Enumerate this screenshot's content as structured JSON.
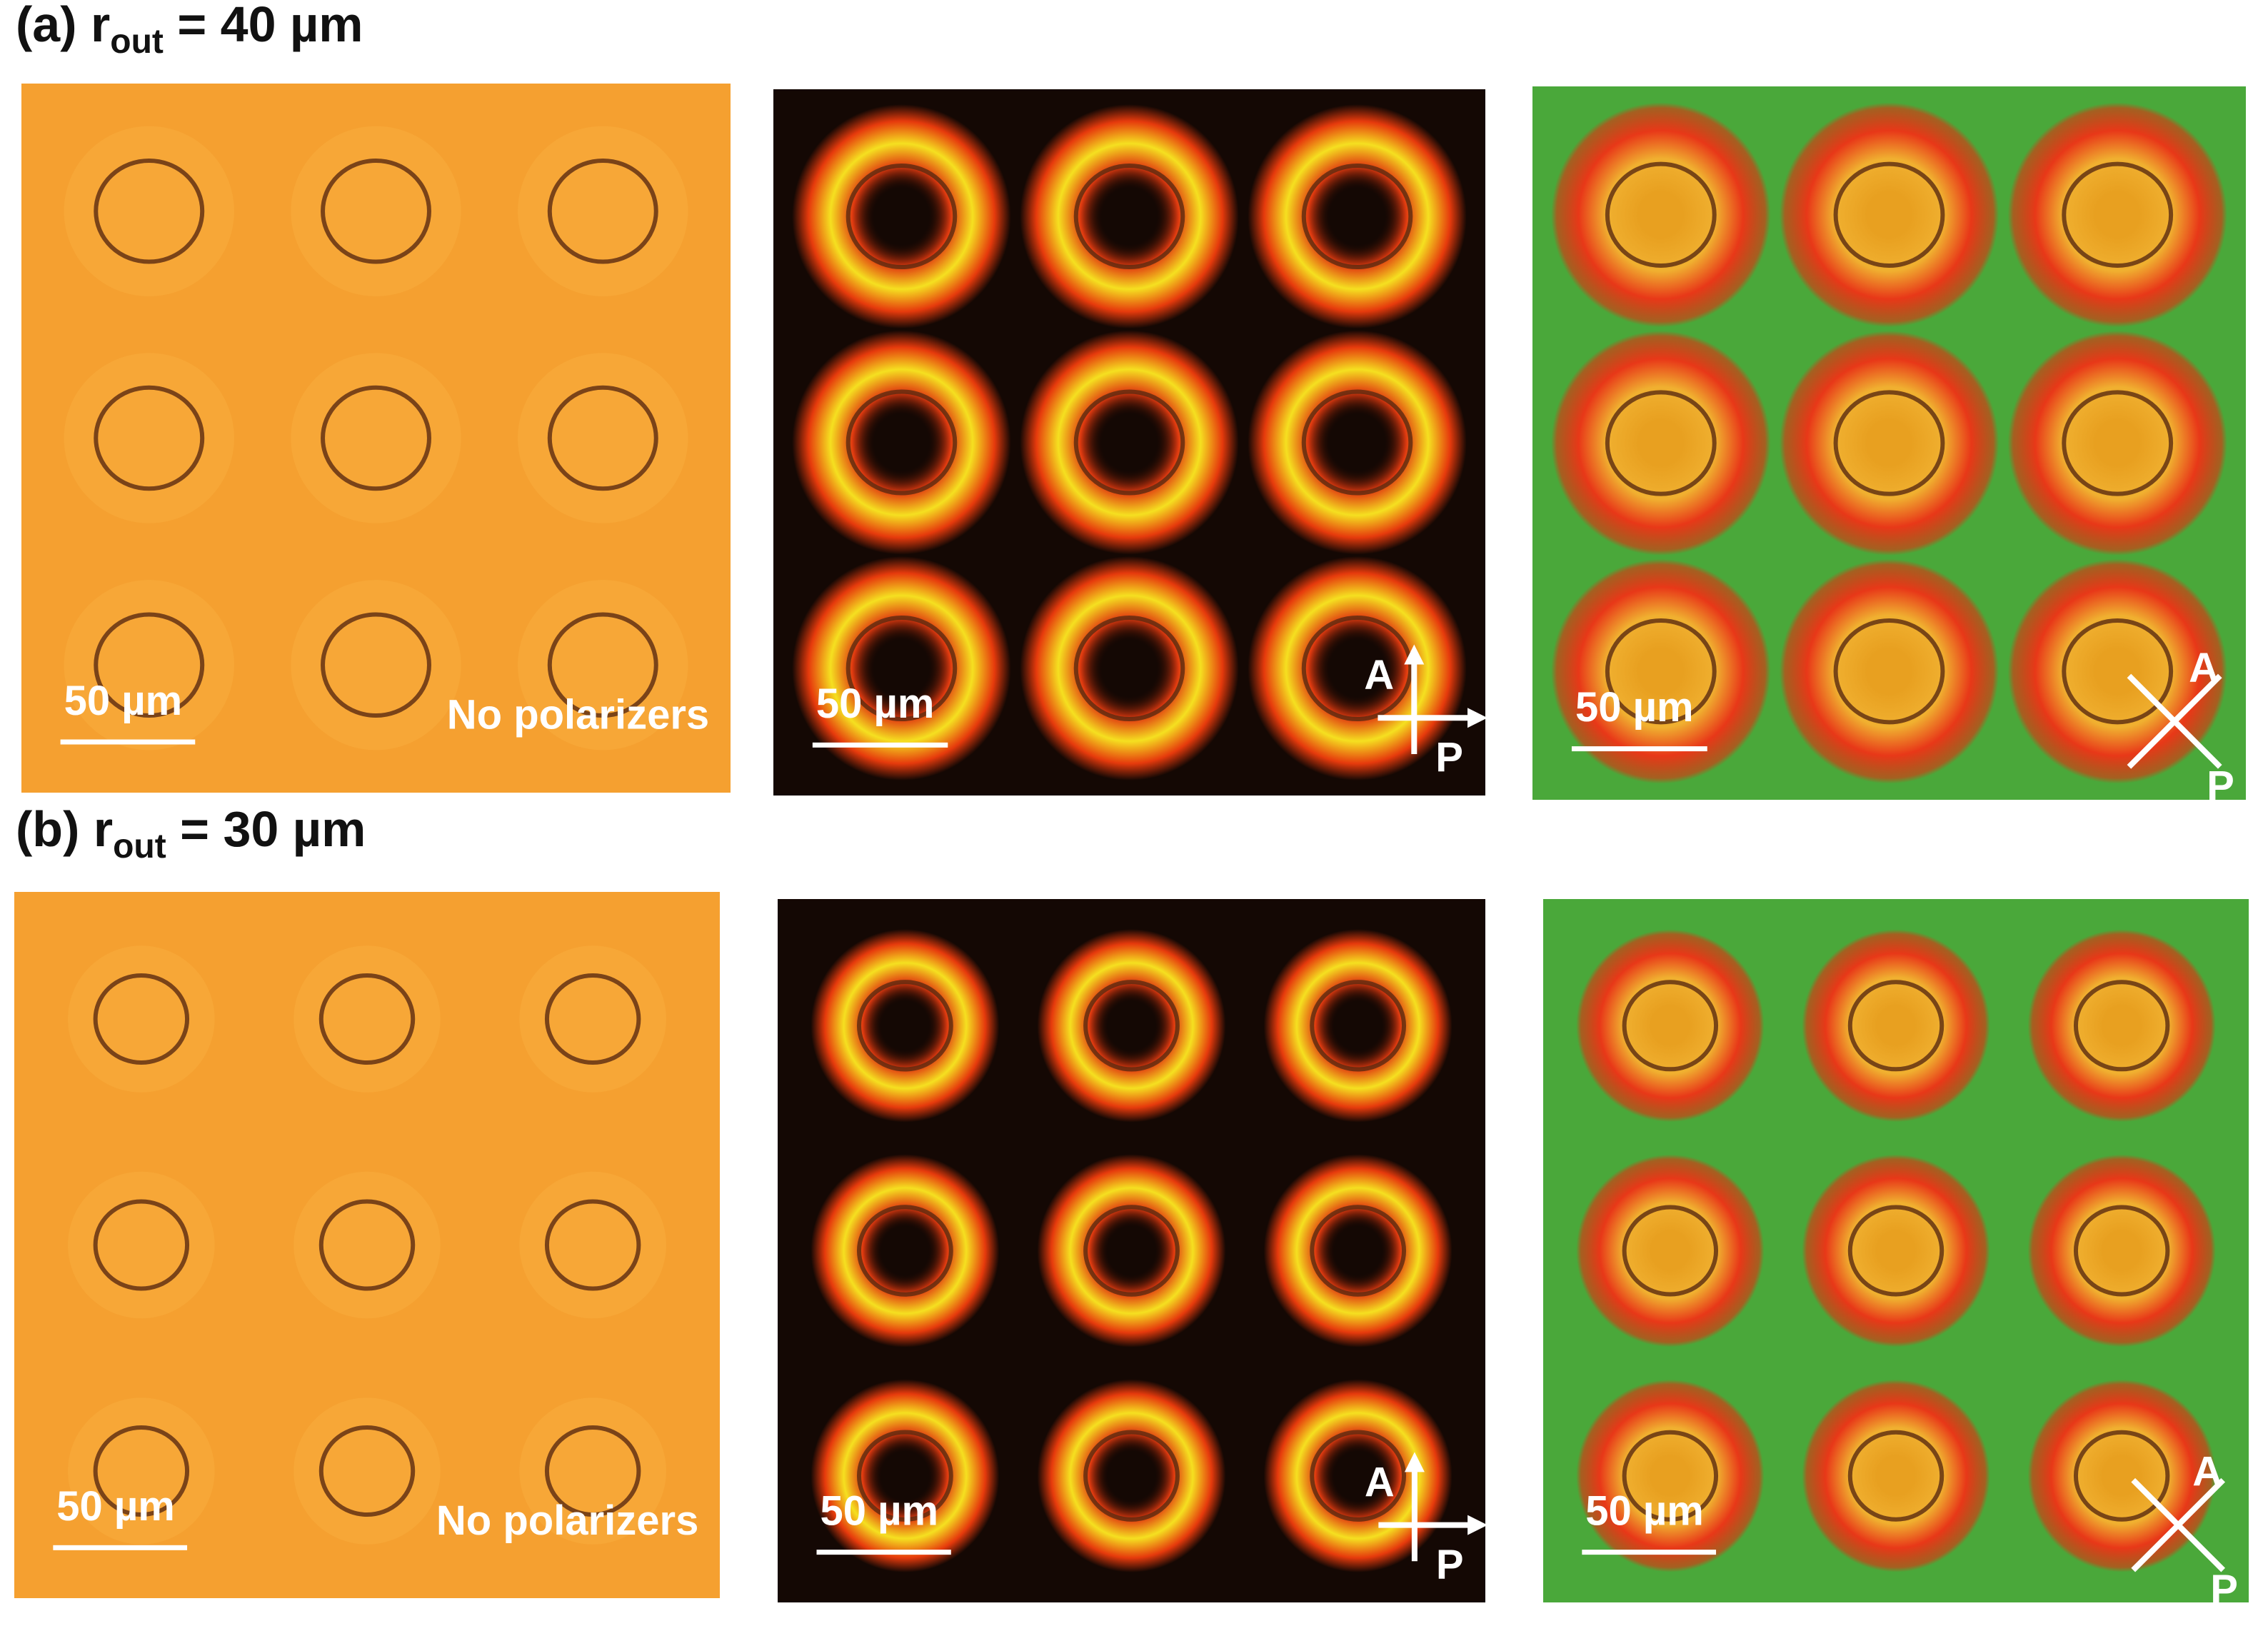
{
  "rows": [
    {
      "label": {
        "prefix": "(a) r",
        "subscript": "out",
        "suffix": " = 40 µm"
      },
      "panels": [
        {
          "scale_bar": "50 µm",
          "note": "No polarizers"
        },
        {
          "scale_bar": "50 µm",
          "analyzer": "A",
          "polarizer": "P"
        },
        {
          "scale_bar": "50 µm",
          "analyzer": "A",
          "polarizer": "P"
        }
      ]
    },
    {
      "label": {
        "prefix": "(b) r",
        "subscript": "out",
        "suffix": " = 30 µm"
      },
      "panels": [
        {
          "scale_bar": "50 µm",
          "note": "No polarizers"
        },
        {
          "scale_bar": "50 µm",
          "analyzer": "A",
          "polarizer": "P"
        },
        {
          "scale_bar": "50 µm",
          "analyzer": "A",
          "polarizer": "P"
        }
      ]
    }
  ]
}
